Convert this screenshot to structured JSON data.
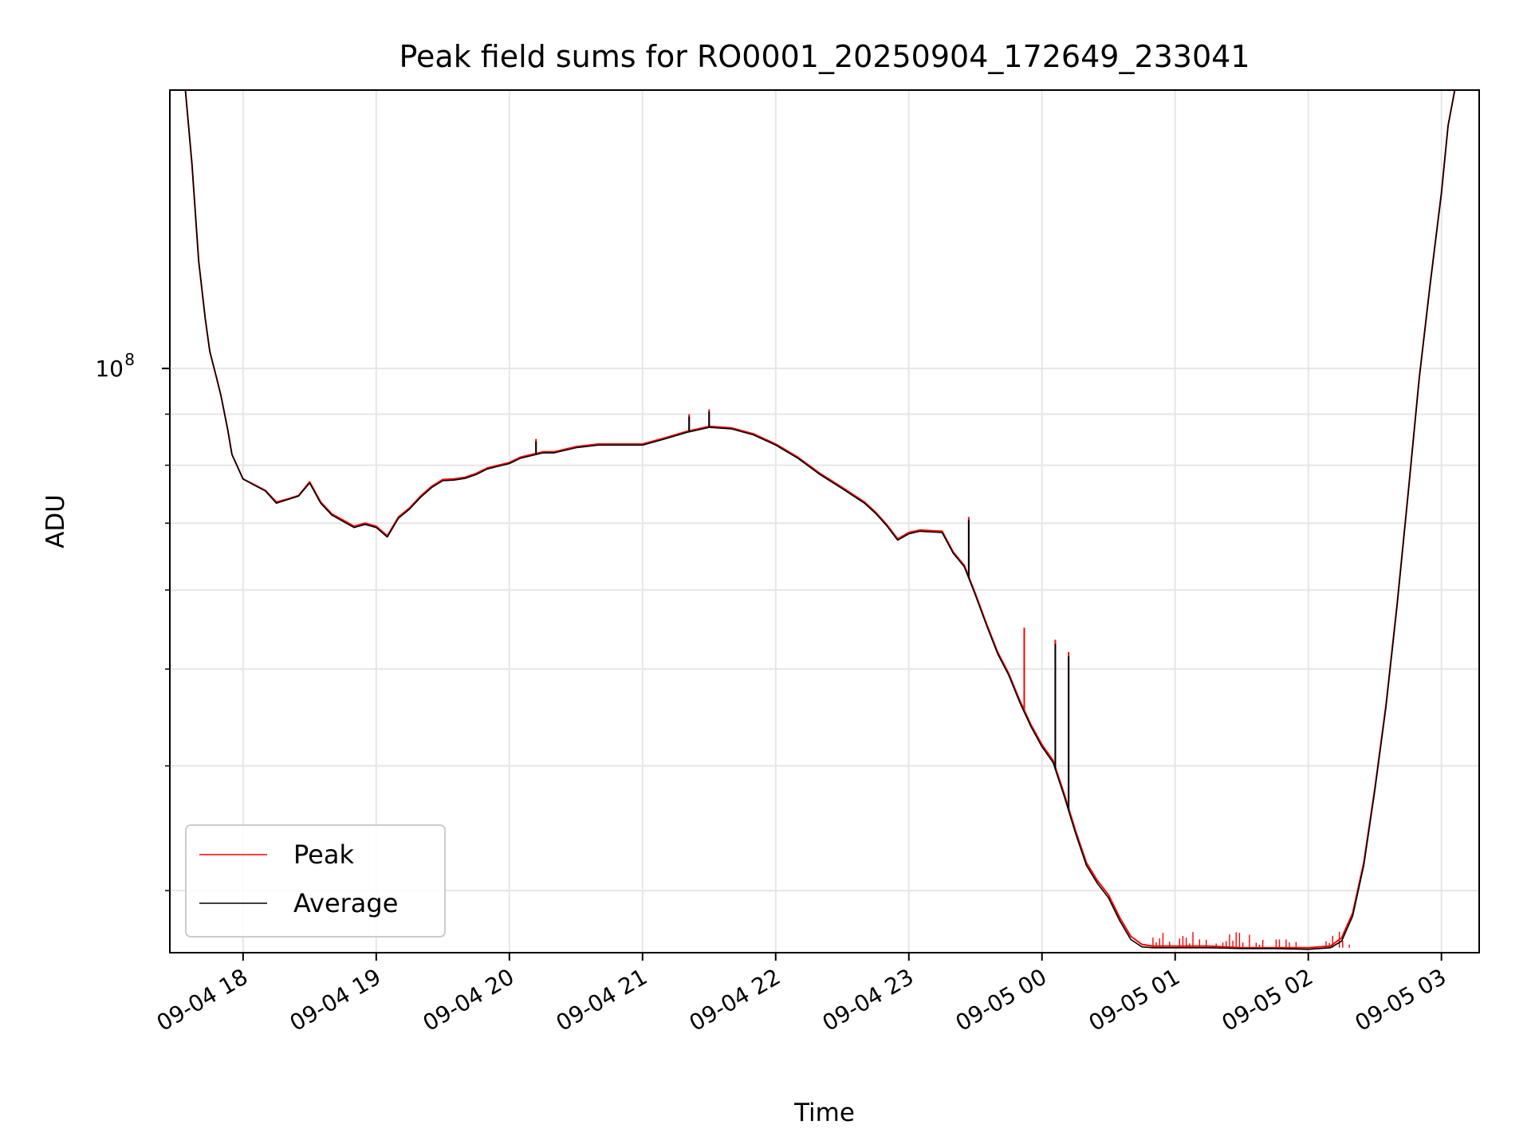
{
  "chart_data": {
    "type": "line",
    "title": "Peak field sums for RO0001_20250904_172649_233041",
    "xlabel": "Time",
    "ylabel": "ADU",
    "y_scale": "log",
    "ylim": [
      26000000,
      190000000
    ],
    "y_major_tick": {
      "value": 100000000,
      "label_base": "10",
      "label_exp": "8"
    },
    "y_minor_ticks": [
      30000000,
      40000000,
      50000000,
      60000000,
      70000000,
      80000000,
      90000000,
      200000000
    ],
    "xlim": [
      "2025-09-04 17:27",
      "2025-09-05 03:17"
    ],
    "x_ticks": [
      {
        "t": "2025-09-04 18:00",
        "label": "09-04 18"
      },
      {
        "t": "2025-09-04 19:00",
        "label": "09-04 19"
      },
      {
        "t": "2025-09-04 20:00",
        "label": "09-04 20"
      },
      {
        "t": "2025-09-04 21:00",
        "label": "09-04 21"
      },
      {
        "t": "2025-09-04 22:00",
        "label": "09-04 22"
      },
      {
        "t": "2025-09-04 23:00",
        "label": "09-04 23"
      },
      {
        "t": "2025-09-05 00:00",
        "label": "09-05 00"
      },
      {
        "t": "2025-09-05 01:00",
        "label": "09-05 01"
      },
      {
        "t": "2025-09-05 02:00",
        "label": "09-05 02"
      },
      {
        "t": "2025-09-05 03:00",
        "label": "09-05 03"
      }
    ],
    "grid": true,
    "legend_position": "lower-left",
    "series": [
      {
        "name": "Peak",
        "color": "#ff0000",
        "points": [
          [
            "2025-09-04 17:34",
            190000000
          ],
          [
            "2025-09-04 17:37",
            160000000
          ],
          [
            "2025-09-04 17:40",
            128000000
          ],
          [
            "2025-09-04 17:43",
            112000000
          ],
          [
            "2025-09-04 17:45",
            104000000
          ],
          [
            "2025-09-04 17:48",
            98000000
          ],
          [
            "2025-09-04 17:50",
            94000000
          ],
          [
            "2025-09-04 17:53",
            87000000
          ],
          [
            "2025-09-04 17:55",
            82000000
          ],
          [
            "2025-09-04 18:00",
            77500000
          ],
          [
            "2025-09-04 18:05",
            76500000
          ],
          [
            "2025-09-04 18:10",
            75500000
          ],
          [
            "2025-09-04 18:15",
            73500000
          ],
          [
            "2025-09-04 18:20",
            74000000
          ],
          [
            "2025-09-04 18:25",
            74600000
          ],
          [
            "2025-09-04 18:30",
            77000000
          ],
          [
            "2025-09-04 18:35",
            73500000
          ],
          [
            "2025-09-04 18:40",
            71500000
          ],
          [
            "2025-09-04 18:45",
            70500000
          ],
          [
            "2025-09-04 18:50",
            69500000
          ],
          [
            "2025-09-04 18:55",
            70000000
          ],
          [
            "2025-09-04 19:00",
            69500000
          ],
          [
            "2025-09-04 19:05",
            68000000
          ],
          [
            "2025-09-04 19:10",
            71000000
          ],
          [
            "2025-09-04 19:15",
            72500000
          ],
          [
            "2025-09-04 19:20",
            74500000
          ],
          [
            "2025-09-04 19:25",
            76200000
          ],
          [
            "2025-09-04 19:30",
            77400000
          ],
          [
            "2025-09-04 19:35",
            77500000
          ],
          [
            "2025-09-04 19:40",
            77800000
          ],
          [
            "2025-09-04 19:45",
            78500000
          ],
          [
            "2025-09-04 19:50",
            79500000
          ],
          [
            "2025-09-04 19:55",
            80000000
          ],
          [
            "2025-09-04 20:00",
            80500000
          ],
          [
            "2025-09-04 20:05",
            81500000
          ],
          [
            "2025-09-04 20:10",
            82000000
          ],
          [
            "2025-09-04 20:15",
            82500000
          ],
          [
            "2025-09-04 20:20",
            82500000
          ],
          [
            "2025-09-04 20:30",
            83500000
          ],
          [
            "2025-09-04 20:40",
            84000000
          ],
          [
            "2025-09-04 20:50",
            84000000
          ],
          [
            "2025-09-04 21:00",
            84000000
          ],
          [
            "2025-09-04 21:10",
            85200000
          ],
          [
            "2025-09-04 21:20",
            86500000
          ],
          [
            "2025-09-04 21:30",
            87500000
          ],
          [
            "2025-09-04 21:40",
            87200000
          ],
          [
            "2025-09-04 21:50",
            86000000
          ],
          [
            "2025-09-04 22:00",
            84000000
          ],
          [
            "2025-09-04 22:10",
            81500000
          ],
          [
            "2025-09-04 22:20",
            78500000
          ],
          [
            "2025-09-04 22:30",
            76000000
          ],
          [
            "2025-09-04 22:40",
            73500000
          ],
          [
            "2025-09-04 22:45",
            71800000
          ],
          [
            "2025-09-04 22:50",
            69800000
          ],
          [
            "2025-09-04 22:55",
            67500000
          ],
          [
            "2025-09-04 23:00",
            68500000
          ],
          [
            "2025-09-04 23:05",
            68900000
          ],
          [
            "2025-09-04 23:10",
            68800000
          ],
          [
            "2025-09-04 23:15",
            68700000
          ],
          [
            "2025-09-04 23:20",
            65500000
          ],
          [
            "2025-09-04 23:25",
            63500000
          ],
          [
            "2025-09-04 23:30",
            59500000
          ],
          [
            "2025-09-04 23:35",
            55500000
          ],
          [
            "2025-09-04 23:40",
            52000000
          ],
          [
            "2025-09-04 23:45",
            49500000
          ],
          [
            "2025-09-04 23:50",
            46500000
          ],
          [
            "2025-09-04 23:55",
            44000000
          ],
          [
            "2025-09-05 00:00",
            42000000
          ],
          [
            "2025-09-05 00:05",
            40500000
          ],
          [
            "2025-09-05 00:10",
            37500000
          ],
          [
            "2025-09-05 00:15",
            34500000
          ],
          [
            "2025-09-05 00:20",
            32000000
          ],
          [
            "2025-09-05 00:25",
            30700000
          ],
          [
            "2025-09-05 00:30",
            29700000
          ],
          [
            "2025-09-05 00:35",
            28200000
          ],
          [
            "2025-09-05 00:40",
            27000000
          ],
          [
            "2025-09-05 00:45",
            26500000
          ],
          [
            "2025-09-05 00:50",
            26400000
          ],
          [
            "2025-09-05 01:00",
            26400000
          ],
          [
            "2025-09-05 01:15",
            26400000
          ],
          [
            "2025-09-05 01:30",
            26300000
          ],
          [
            "2025-09-05 01:45",
            26300000
          ],
          [
            "2025-09-05 02:00",
            26300000
          ],
          [
            "2025-09-05 02:10",
            26400000
          ],
          [
            "2025-09-05 02:15",
            26900000
          ],
          [
            "2025-09-05 02:20",
            28500000
          ],
          [
            "2025-09-05 02:25",
            32000000
          ],
          [
            "2025-09-05 02:30",
            38000000
          ],
          [
            "2025-09-05 02:35",
            46000000
          ],
          [
            "2025-09-05 02:40",
            58000000
          ],
          [
            "2025-09-05 02:45",
            75000000
          ],
          [
            "2025-09-05 02:50",
            98000000
          ],
          [
            "2025-09-05 02:55",
            122000000
          ],
          [
            "2025-09-05 03:00",
            150000000
          ],
          [
            "2025-09-05 03:03",
            175000000
          ],
          [
            "2025-09-05 03:06",
            190000000
          ]
        ],
        "spikes": [
          [
            "2025-09-04 20:12",
            85000000
          ],
          [
            "2025-09-04 21:21",
            90000000
          ],
          [
            "2025-09-04 21:30",
            91000000
          ],
          [
            "2025-09-04 23:27",
            71000000
          ],
          [
            "2025-09-04 23:52",
            55000000
          ],
          [
            "2025-09-05 00:06",
            53500000
          ],
          [
            "2025-09-05 00:12",
            52000000
          ]
        ]
      },
      {
        "name": "Average",
        "color": "#000000",
        "points": [
          [
            "2025-09-04 17:34",
            190000000
          ],
          [
            "2025-09-04 17:37",
            160000000
          ],
          [
            "2025-09-04 17:40",
            128000000
          ],
          [
            "2025-09-04 17:43",
            112000000
          ],
          [
            "2025-09-04 17:45",
            104000000
          ],
          [
            "2025-09-04 17:48",
            98000000
          ],
          [
            "2025-09-04 17:50",
            94000000
          ],
          [
            "2025-09-04 17:53",
            87000000
          ],
          [
            "2025-09-04 17:55",
            82000000
          ],
          [
            "2025-09-04 18:00",
            77500000
          ],
          [
            "2025-09-04 18:05",
            76400000
          ],
          [
            "2025-09-04 18:10",
            75400000
          ],
          [
            "2025-09-04 18:15",
            73300000
          ],
          [
            "2025-09-04 18:20",
            73900000
          ],
          [
            "2025-09-04 18:25",
            74500000
          ],
          [
            "2025-09-04 18:30",
            76800000
          ],
          [
            "2025-09-04 18:35",
            73300000
          ],
          [
            "2025-09-04 18:40",
            71300000
          ],
          [
            "2025-09-04 18:45",
            70300000
          ],
          [
            "2025-09-04 18:50",
            69300000
          ],
          [
            "2025-09-04 18:55",
            69800000
          ],
          [
            "2025-09-04 19:00",
            69300000
          ],
          [
            "2025-09-04 19:05",
            67800000
          ],
          [
            "2025-09-04 19:10",
            70800000
          ],
          [
            "2025-09-04 19:15",
            72300000
          ],
          [
            "2025-09-04 19:20",
            74300000
          ],
          [
            "2025-09-04 19:25",
            76000000
          ],
          [
            "2025-09-04 19:30",
            77200000
          ],
          [
            "2025-09-04 19:35",
            77300000
          ],
          [
            "2025-09-04 19:40",
            77600000
          ],
          [
            "2025-09-04 19:45",
            78300000
          ],
          [
            "2025-09-04 19:50",
            79300000
          ],
          [
            "2025-09-04 19:55",
            79800000
          ],
          [
            "2025-09-04 20:00",
            80300000
          ],
          [
            "2025-09-04 20:05",
            81300000
          ],
          [
            "2025-09-04 20:10",
            81800000
          ],
          [
            "2025-09-04 20:15",
            82300000
          ],
          [
            "2025-09-04 20:20",
            82300000
          ],
          [
            "2025-09-04 20:30",
            83300000
          ],
          [
            "2025-09-04 20:40",
            83800000
          ],
          [
            "2025-09-04 20:50",
            83800000
          ],
          [
            "2025-09-04 21:00",
            83800000
          ],
          [
            "2025-09-04 21:10",
            85000000
          ],
          [
            "2025-09-04 21:20",
            86300000
          ],
          [
            "2025-09-04 21:30",
            87300000
          ],
          [
            "2025-09-04 21:40",
            87000000
          ],
          [
            "2025-09-04 21:50",
            85800000
          ],
          [
            "2025-09-04 22:00",
            83800000
          ],
          [
            "2025-09-04 22:10",
            81300000
          ],
          [
            "2025-09-04 22:20",
            78300000
          ],
          [
            "2025-09-04 22:30",
            75800000
          ],
          [
            "2025-09-04 22:40",
            73300000
          ],
          [
            "2025-09-04 22:45",
            71600000
          ],
          [
            "2025-09-04 22:50",
            69600000
          ],
          [
            "2025-09-04 22:55",
            67300000
          ],
          [
            "2025-09-04 23:00",
            68300000
          ],
          [
            "2025-09-04 23:05",
            68700000
          ],
          [
            "2025-09-04 23:10",
            68600000
          ],
          [
            "2025-09-04 23:15",
            68500000
          ],
          [
            "2025-09-04 23:20",
            65300000
          ],
          [
            "2025-09-04 23:25",
            63300000
          ],
          [
            "2025-09-04 23:30",
            59300000
          ],
          [
            "2025-09-04 23:35",
            55300000
          ],
          [
            "2025-09-04 23:40",
            51800000
          ],
          [
            "2025-09-04 23:45",
            49300000
          ],
          [
            "2025-09-04 23:50",
            46300000
          ],
          [
            "2025-09-04 23:55",
            43800000
          ],
          [
            "2025-09-05 00:00",
            41800000
          ],
          [
            "2025-09-05 00:05",
            40300000
          ],
          [
            "2025-09-05 00:10",
            37300000
          ],
          [
            "2025-09-05 00:15",
            34300000
          ],
          [
            "2025-09-05 00:20",
            31800000
          ],
          [
            "2025-09-05 00:25",
            30500000
          ],
          [
            "2025-09-05 00:30",
            29500000
          ],
          [
            "2025-09-05 00:35",
            28000000
          ],
          [
            "2025-09-05 00:40",
            26800000
          ],
          [
            "2025-09-05 00:45",
            26350000
          ],
          [
            "2025-09-05 00:50",
            26300000
          ],
          [
            "2025-09-05 01:00",
            26300000
          ],
          [
            "2025-09-05 01:15",
            26300000
          ],
          [
            "2025-09-05 01:30",
            26250000
          ],
          [
            "2025-09-05 01:45",
            26250000
          ],
          [
            "2025-09-05 02:00",
            26200000
          ],
          [
            "2025-09-05 02:10",
            26300000
          ],
          [
            "2025-09-05 02:15",
            26700000
          ],
          [
            "2025-09-05 02:20",
            28300000
          ],
          [
            "2025-09-05 02:25",
            31800000
          ],
          [
            "2025-09-05 02:30",
            37800000
          ],
          [
            "2025-09-05 02:35",
            45800000
          ],
          [
            "2025-09-05 02:40",
            57800000
          ],
          [
            "2025-09-05 02:45",
            74800000
          ],
          [
            "2025-09-05 02:50",
            97800000
          ],
          [
            "2025-09-05 02:55",
            121800000
          ],
          [
            "2025-09-05 03:00",
            149800000
          ],
          [
            "2025-09-05 03:03",
            175000000
          ],
          [
            "2025-09-05 03:06",
            190000000
          ]
        ],
        "spikes": [
          [
            "2025-09-04 20:12",
            84500000
          ],
          [
            "2025-09-04 21:21",
            89500000
          ],
          [
            "2025-09-04 21:30",
            90500000
          ],
          [
            "2025-09-04 23:27",
            70500000
          ],
          [
            "2025-09-05 00:06",
            53000000
          ],
          [
            "2025-09-05 00:12",
            51500000
          ]
        ]
      }
    ]
  }
}
